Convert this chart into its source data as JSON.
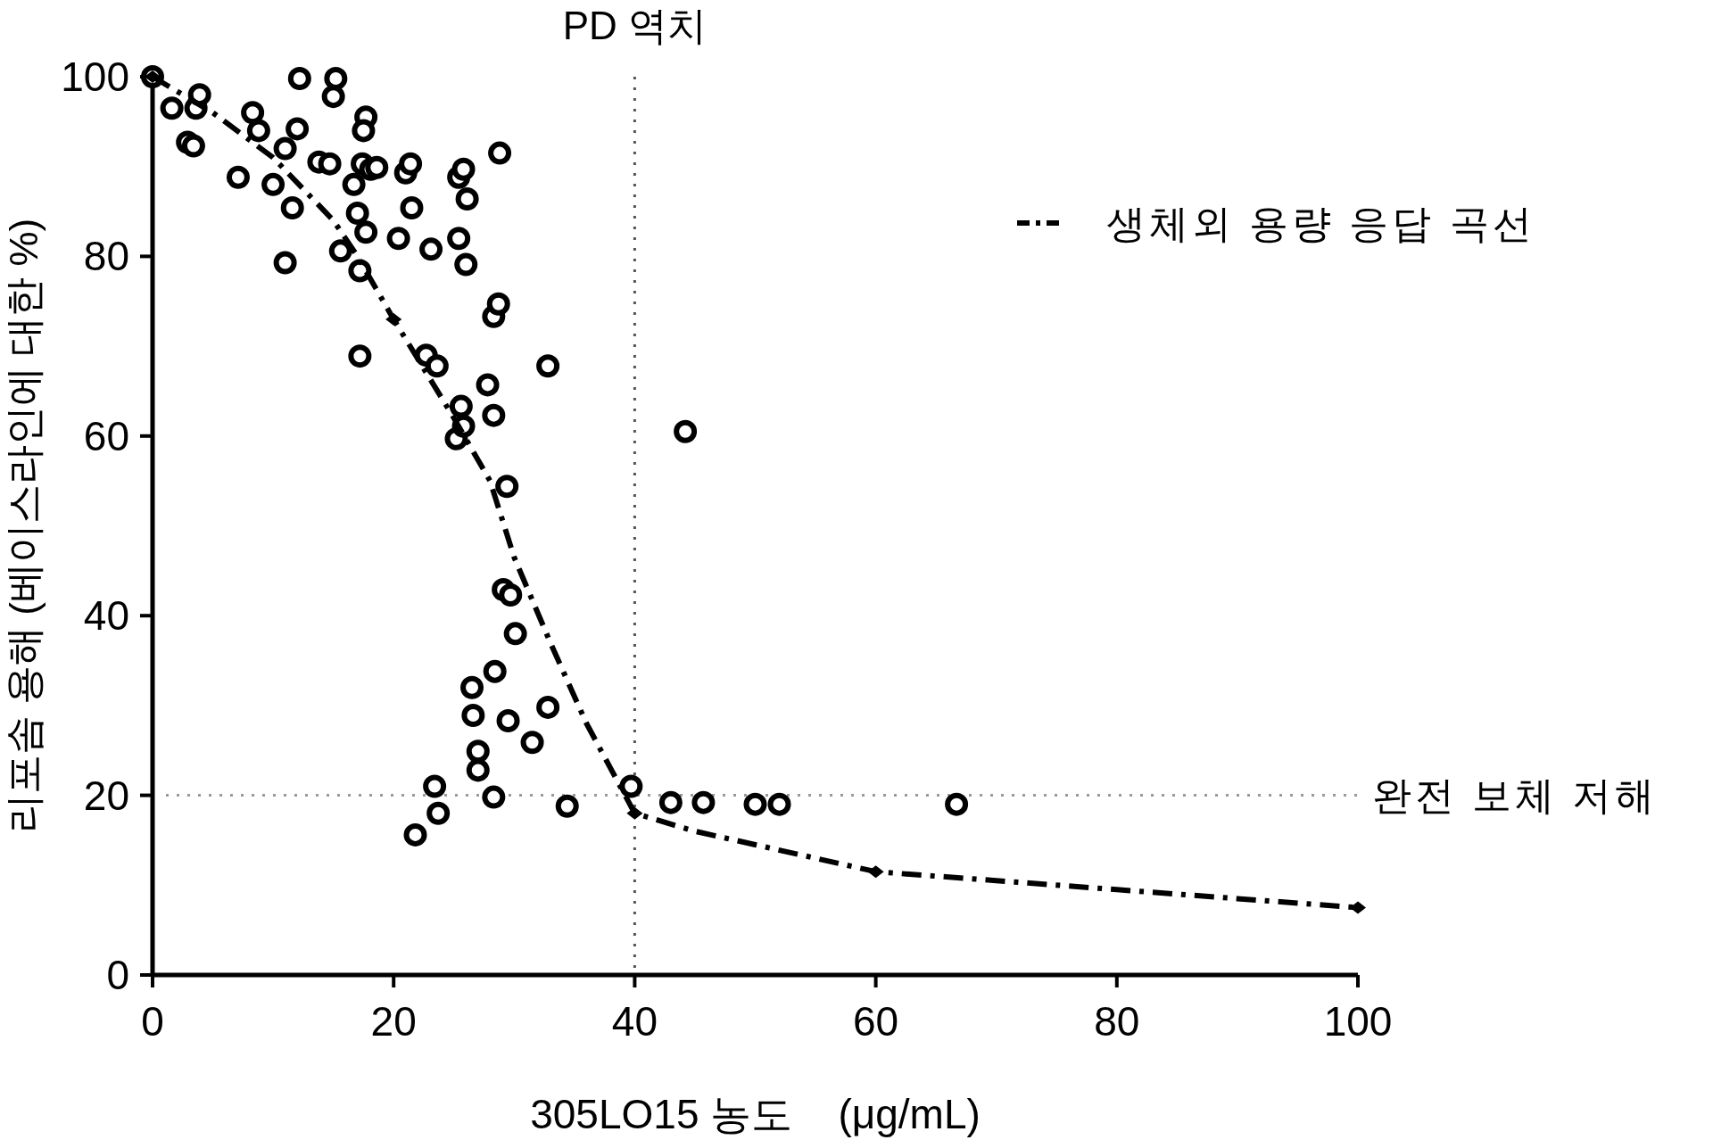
{
  "chart_data": {
    "type": "scatter",
    "xlabel": "305LO15 농도    (μg/mL)",
    "ylabel": "리포솜 용해 (베이스라인에 대한 %)",
    "xlim": [
      0,
      100
    ],
    "xticks": [
      0,
      20,
      40,
      60,
      80,
      100
    ],
    "ylim": [
      0,
      100
    ],
    "yticks": [
      0,
      20,
      40,
      60,
      80,
      100
    ],
    "legend": "top right",
    "series": [
      {
        "color": "#000000",
        "marker": "circle",
        "x": [
          0,
          1.6,
          2.9,
          3.4,
          3.6,
          3.9,
          7.1,
          8.3,
          8.8,
          10,
          11,
          11,
          11.6,
          12,
          12.2,
          13.8,
          14.7,
          15,
          15.2,
          15.6,
          16.7,
          17,
          17.2,
          17.2,
          17.4,
          17.7,
          17.5,
          17.7,
          18.1,
          18.6,
          20.4,
          21,
          21.4,
          21.5,
          22.7,
          23.1,
          23.6,
          21.8,
          23.4,
          23.7,
          25.4,
          25.4,
          25.8,
          26.1,
          26,
          25.6,
          25.2,
          25.8,
          26.5,
          26.6,
          27,
          27,
          27.8,
          28.3,
          28.3,
          28.7,
          28.3,
          28.4,
          28.8,
          29.4,
          29.1,
          29.7,
          30.1,
          29.5,
          31.5,
          32.8,
          32.8,
          34.4,
          39.7,
          43,
          44.2,
          45.7,
          50,
          52,
          66.7
        ],
        "values": [
          100,
          96.5,
          92.7,
          92.3,
          96.5,
          98,
          88.8,
          96,
          94,
          88,
          92,
          79.3,
          85.4,
          94.2,
          99.8,
          90.5,
          90.3,
          97.8,
          99.8,
          80.6,
          88,
          84.8,
          78.4,
          68.9,
          90.3,
          95.5,
          94,
          82.7,
          89.7,
          89.9,
          82,
          89.3,
          90.3,
          85.4,
          69,
          80.8,
          67.8,
          15.6,
          21,
          18,
          82,
          88.8,
          89.7,
          86.4,
          79.1,
          63.3,
          59.7,
          61.1,
          32,
          28.9,
          24.9,
          22.8,
          65.7,
          62.3,
          73.3,
          74.7,
          19.8,
          33.8,
          91.5,
          54.4,
          42.9,
          42.3,
          38,
          28.3,
          25.9,
          29.8,
          67.8,
          18.8,
          21,
          19.2,
          60.5,
          19.2,
          19,
          19,
          19
        ]
      },
      {
        "type": "line",
        "name": "생체외 용량 응답 곡선",
        "color": "#000000",
        "line_style": "dashed",
        "x": [
          0,
          5,
          10,
          15,
          17,
          20,
          25,
          28,
          30,
          33,
          36,
          38,
          40,
          45,
          50,
          60,
          70,
          80,
          90,
          100
        ],
        "values": [
          100,
          96,
          91,
          84,
          80,
          73,
          62,
          55,
          46.5,
          37,
          28,
          23,
          18,
          16,
          14.5,
          11.5,
          10.5,
          9.5,
          8.5,
          7.5
        ]
      },
      {
        "color": "#000000",
        "marker": "diamond",
        "x": [
          0,
          20,
          40,
          60,
          100
        ],
        "values": [
          100,
          73,
          18,
          11.5,
          7.5
        ]
      }
    ],
    "ref_lines": [
      {
        "axis": "x",
        "value": 40,
        "label": "PD 역치",
        "color": "#555555",
        "line_style": "dotted"
      },
      {
        "axis": "y",
        "value": 20,
        "label": "완전 보체 저해",
        "color": "#999999",
        "line_style": "dotted"
      }
    ]
  }
}
